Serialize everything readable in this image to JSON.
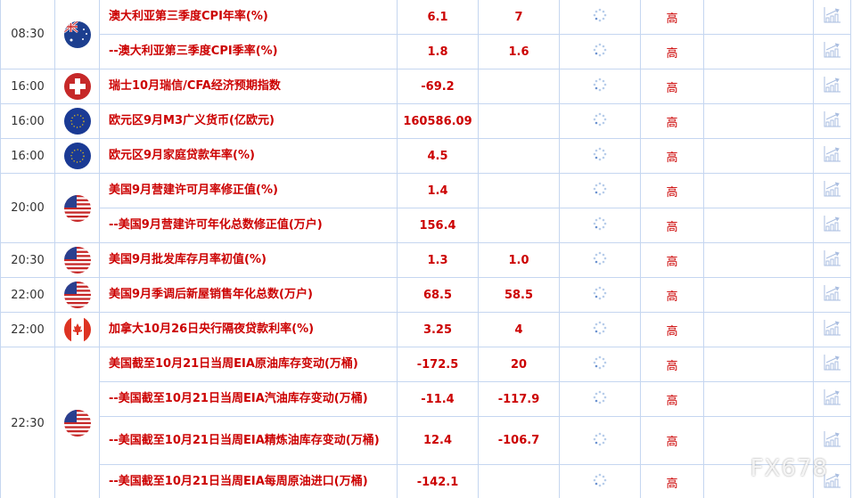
{
  "colors": {
    "text_red": "#cc0000",
    "grid": "#c5d6f0"
  },
  "watermark": "FX678",
  "groups": [
    {
      "time": "08:30",
      "flag": "australia-flag",
      "rows": [
        {
          "event": "澳大利亚第三季度CPI年率(%)",
          "previous": "6.1",
          "forecast": "7",
          "actual": "",
          "importance": "高"
        },
        {
          "event": "--澳大利亚第三季度CPI季率(%)",
          "previous": "1.8",
          "forecast": "1.6",
          "actual": "",
          "importance": "高"
        }
      ]
    },
    {
      "time": "16:00",
      "flag": "switzerland-flag",
      "rows": [
        {
          "event": "瑞士10月瑞信/CFA经济预期指数",
          "previous": "-69.2",
          "forecast": "",
          "actual": "",
          "importance": "高"
        }
      ]
    },
    {
      "time": "16:00",
      "flag": "eu-flag",
      "rows": [
        {
          "event": "欧元区9月M3广义货币(亿欧元)",
          "previous": "160586.09",
          "forecast": "",
          "actual": "",
          "importance": "高"
        }
      ]
    },
    {
      "time": "16:00",
      "flag": "eu-flag",
      "rows": [
        {
          "event": "欧元区9月家庭贷款年率(%)",
          "previous": "4.5",
          "forecast": "",
          "actual": "",
          "importance": "高"
        }
      ]
    },
    {
      "time": "20:00",
      "flag": "usa-flag",
      "rows": [
        {
          "event": "美国9月营建许可月率修正值(%)",
          "previous": "1.4",
          "forecast": "",
          "actual": "",
          "importance": "高"
        },
        {
          "event": "--美国9月营建许可年化总数修正值(万户)",
          "previous": "156.4",
          "forecast": "",
          "actual": "",
          "importance": "高"
        }
      ]
    },
    {
      "time": "20:30",
      "flag": "usa-flag",
      "rows": [
        {
          "event": "美国9月批发库存月率初值(%)",
          "previous": "1.3",
          "forecast": "1.0",
          "actual": "",
          "importance": "高"
        }
      ]
    },
    {
      "time": "22:00",
      "flag": "usa-flag",
      "rows": [
        {
          "event": "美国9月季调后新屋销售年化总数(万户)",
          "previous": "68.5",
          "forecast": "58.5",
          "actual": "",
          "importance": "高"
        }
      ]
    },
    {
      "time": "22:00",
      "flag": "canada-flag",
      "rows": [
        {
          "event": "加拿大10月26日央行隔夜贷款利率(%)",
          "previous": "3.25",
          "forecast": "4",
          "actual": "",
          "importance": "高"
        }
      ]
    },
    {
      "time": "22:30",
      "flag": "usa-flag",
      "rows": [
        {
          "event": "美国截至10月21日当周EIA原油库存变动(万桶)",
          "previous": "-172.5",
          "forecast": "20",
          "actual": "",
          "importance": "高"
        },
        {
          "event": "--美国截至10月21日当周EIA汽油库存变动(万桶)",
          "previous": "-11.4",
          "forecast": "-117.9",
          "actual": "",
          "importance": "高"
        },
        {
          "event": "--美国截至10月21日当周EIA精炼油库存变动(万桶)",
          "previous": "12.4",
          "forecast": "-106.7",
          "actual": "",
          "importance": "高",
          "tall": true
        },
        {
          "event": "--美国截至10月21日当周EIA每周原油进口(万桶)",
          "previous": "-142.1",
          "forecast": "",
          "actual": "",
          "importance": "高"
        }
      ]
    }
  ]
}
